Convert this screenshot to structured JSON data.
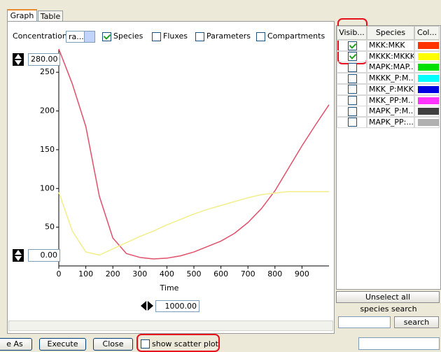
{
  "tabs": [
    "Graph",
    "Table"
  ],
  "toolbar": {
    "mode_label": "Concentration",
    "mode_value": "ra...",
    "checkboxes": [
      {
        "label": "Species",
        "checked": true
      },
      {
        "label": "Fluxes",
        "checked": false
      },
      {
        "label": "Parameters",
        "checked": false
      },
      {
        "label": "Compartments",
        "checked": false
      }
    ]
  },
  "spinners": {
    "y_max": "280.00",
    "y_min": "0.00",
    "x_max": "1000.00"
  },
  "chart_data": {
    "type": "line",
    "xlabel": "Time",
    "x": [
      0,
      50,
      100,
      150,
      200,
      250,
      300,
      350,
      400,
      450,
      500,
      550,
      600,
      650,
      700,
      750,
      800,
      850,
      900,
      950,
      1000
    ],
    "xlim": [
      0,
      1000
    ],
    "xticks": [
      0,
      100,
      200,
      300,
      400,
      500,
      600,
      700,
      800,
      900
    ],
    "ylim": [
      0,
      280
    ],
    "yticks": [
      50,
      100,
      150,
      200,
      250
    ],
    "series": [
      {
        "color": "#e0506a",
        "values": [
          280,
          235,
          180,
          90,
          36,
          16,
          11,
          9,
          10,
          13,
          18,
          25,
          32,
          42,
          56,
          74,
          97,
          126,
          155,
          182,
          208
        ]
      },
      {
        "color": "#f2ee8a",
        "values": [
          95,
          45,
          18,
          14,
          22,
          30,
          38,
          45,
          53,
          60,
          67,
          73,
          78,
          83,
          88,
          92,
          94,
          96,
          96,
          96,
          96
        ]
      }
    ]
  },
  "species_table": {
    "headers": [
      "Visib...",
      "Species",
      "Col..."
    ],
    "rows": [
      {
        "visible": true,
        "species": "MKK:MKK",
        "color": "#ff3300"
      },
      {
        "visible": true,
        "species": "MKKK:MKKK",
        "color": "#ffff00"
      },
      {
        "visible": false,
        "species": "MAPK:MAP...",
        "color": "#00e000"
      },
      {
        "visible": false,
        "species": "MKKK_P:M...",
        "color": "#00ffff"
      },
      {
        "visible": false,
        "species": "MKK_P:MKK",
        "color": "#0000e0"
      },
      {
        "visible": false,
        "species": "MKK_PP:M...",
        "color": "#ff33ff"
      },
      {
        "visible": false,
        "species": "MAPK_P:M...",
        "color": "#404040"
      },
      {
        "visible": false,
        "species": "MAPK_PP:...",
        "color": "#b0b0b0"
      }
    ]
  },
  "side_controls": {
    "unselect_all": "Unselect all",
    "search_label": "species search",
    "search_button": "search"
  },
  "bottom_bar": {
    "save_as": "e As",
    "execute": "Execute",
    "close": "Close",
    "scatter_label": "show scatter plot",
    "scatter_checked": false
  }
}
